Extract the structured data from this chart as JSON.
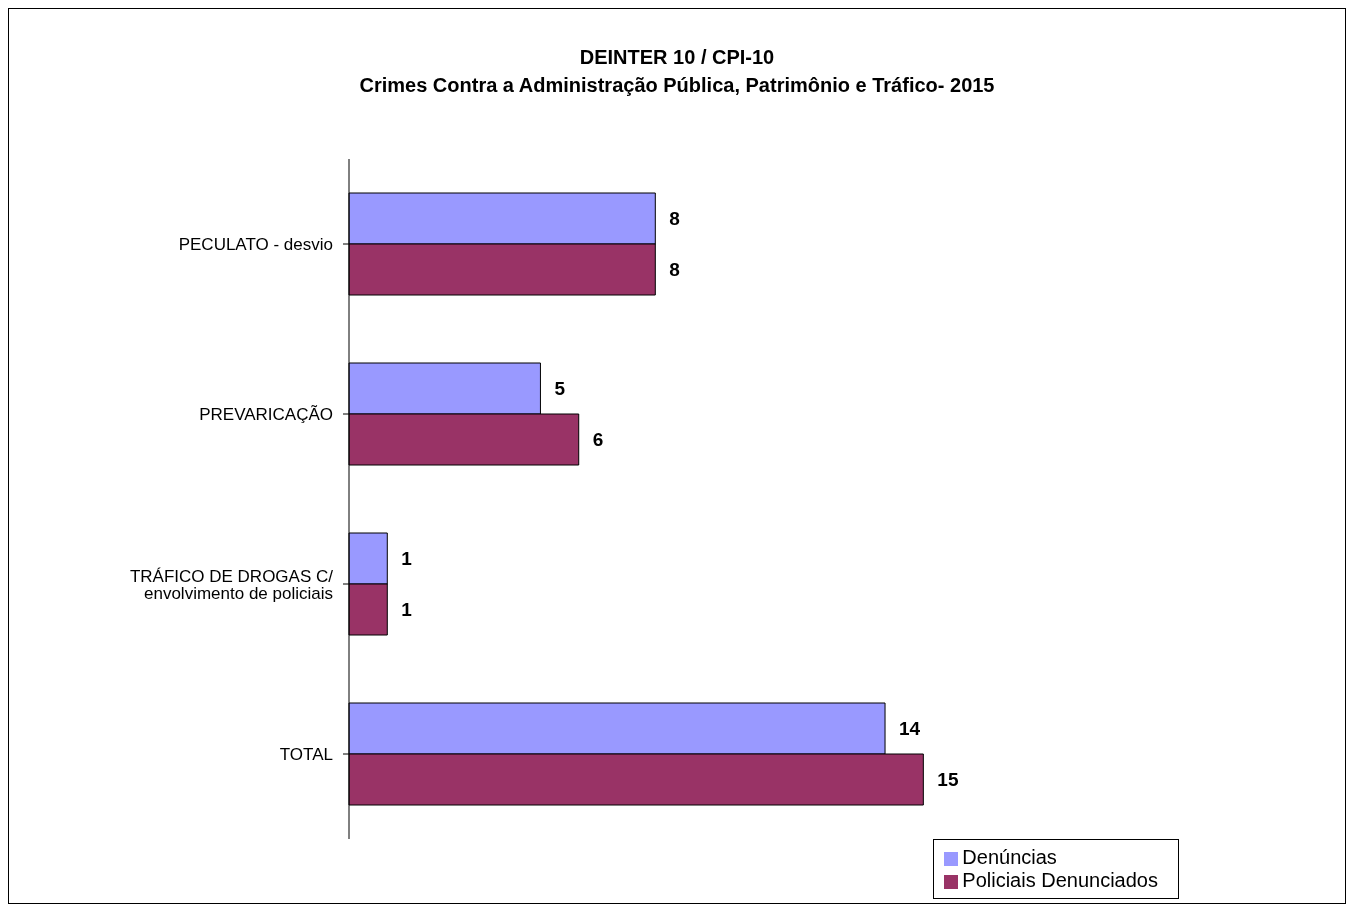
{
  "chart_data": {
    "type": "bar",
    "orientation": "horizontal",
    "title": "DEINTER 10 / CPI-10",
    "subtitle": "Crimes Contra a Administração Pública, Patrimônio e Tráfico- 2015",
    "categories": [
      "PECULATO - desvio",
      "PREVARICAÇÃO",
      "TRÁFICO DE DROGAS C/ envolvimento de policiais",
      "TOTAL"
    ],
    "series": [
      {
        "name": "Denúncias",
        "color": "#9999ff",
        "values": [
          8,
          5,
          1,
          14
        ]
      },
      {
        "name": "Policiais Denunciados",
        "color": "#993366",
        "values": [
          8,
          6,
          1,
          15
        ]
      }
    ],
    "data_labels": true,
    "grid": false,
    "legend": "bottom right"
  }
}
